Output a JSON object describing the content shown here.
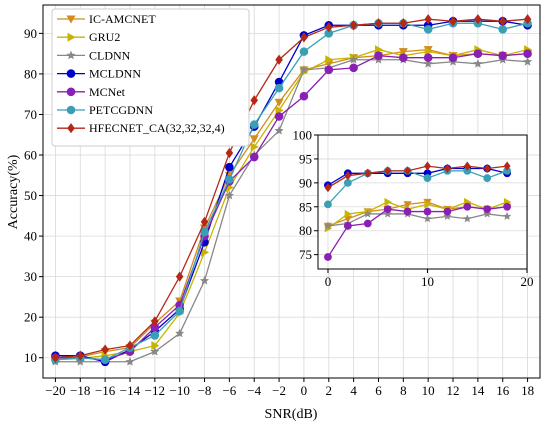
{
  "chart_data": [
    {
      "type": "line",
      "xlabel": "SNR(dB)",
      "ylabel": "Accuracy(%)",
      "xlim": [
        -21,
        19
      ],
      "ylim": [
        5,
        97
      ],
      "x": [
        -20,
        -18,
        -16,
        -14,
        -12,
        -10,
        -8,
        -6,
        -4,
        -2,
        0,
        2,
        4,
        6,
        8,
        10,
        12,
        14,
        16,
        18
      ],
      "xticks": [
        "−20",
        "−18",
        "−16",
        "−14",
        "−12",
        "−10",
        "−8",
        "−6",
        "−4",
        "−2",
        "0",
        "2",
        "4",
        "6",
        "8",
        "10",
        "12",
        "14",
        "16",
        "18"
      ],
      "yticks": [
        10,
        20,
        30,
        40,
        50,
        60,
        70,
        80,
        90
      ],
      "grid": true,
      "legend_position": "top-left",
      "series": [
        {
          "name": "IC-AMCNET",
          "color": "#d28c1e",
          "marker": "triangle-down",
          "values": [
            9.5,
            10.2,
            11.5,
            12.5,
            18.5,
            24,
            42,
            55,
            64,
            73,
            81,
            82.5,
            84,
            84.5,
            85.5,
            86,
            84.5,
            85,
            84.5,
            85
          ]
        },
        {
          "name": "GRU2",
          "color": "#c8b400",
          "marker": "triangle-right",
          "values": [
            9.5,
            9.8,
            10.5,
            11.5,
            13,
            21,
            36,
            52,
            62,
            71,
            80.5,
            83.5,
            84,
            86,
            84.5,
            85.5,
            84.5,
            86,
            84.5,
            86
          ]
        },
        {
          "name": "CLDNN",
          "color": "#888888",
          "marker": "star",
          "values": [
            9,
            9,
            9,
            9,
            11.5,
            16,
            29,
            50,
            60,
            66,
            81,
            81.5,
            83.5,
            83.5,
            83.5,
            82.5,
            83,
            82.5,
            83.5,
            83
          ]
        },
        {
          "name": "MCLDNN",
          "color": "#0000cc",
          "marker": "circle",
          "values": [
            10.5,
            10.5,
            9,
            12,
            16.5,
            22,
            38.5,
            57,
            67,
            78,
            89.5,
            92,
            92,
            92,
            92,
            92,
            93,
            93,
            93,
            92
          ]
        },
        {
          "name": "MCNet",
          "color": "#8a1fb4",
          "marker": "circle",
          "values": [
            10,
            10,
            9.5,
            11.5,
            17.5,
            23,
            40,
            53.5,
            59.5,
            69.5,
            74.5,
            81,
            81.5,
            84.5,
            84,
            84,
            84,
            85,
            84.5,
            85
          ]
        },
        {
          "name": "PETCGDNN",
          "color": "#3a9fb5",
          "marker": "circle",
          "values": [
            9.5,
            10,
            9.5,
            12.5,
            15.5,
            21.5,
            41,
            54,
            67.5,
            76.5,
            85.5,
            90,
            92,
            92.5,
            92.5,
            91,
            92.5,
            92.5,
            91,
            92.5
          ]
        },
        {
          "name": "HFECNET_CA(32,32,32,4)",
          "color": "#b52818",
          "marker": "diamond",
          "values": [
            10,
            10.5,
            12,
            13,
            19,
            30,
            43.5,
            60.5,
            73.5,
            83.5,
            89,
            91.5,
            92,
            92.5,
            92.5,
            93.5,
            93,
            93.5,
            93,
            93.5
          ]
        }
      ]
    },
    {
      "type": "line",
      "inset": true,
      "xlim": [
        -1,
        20
      ],
      "ylim": [
        72,
        100
      ],
      "xticks": [
        "0",
        "10",
        "20"
      ],
      "yticks": [
        75,
        80,
        85,
        90,
        95,
        100
      ],
      "x": [
        0,
        2,
        4,
        6,
        8,
        10,
        12,
        14,
        16,
        18
      ],
      "grid": true,
      "series_from_main_x_range": [
        0,
        18
      ]
    }
  ]
}
